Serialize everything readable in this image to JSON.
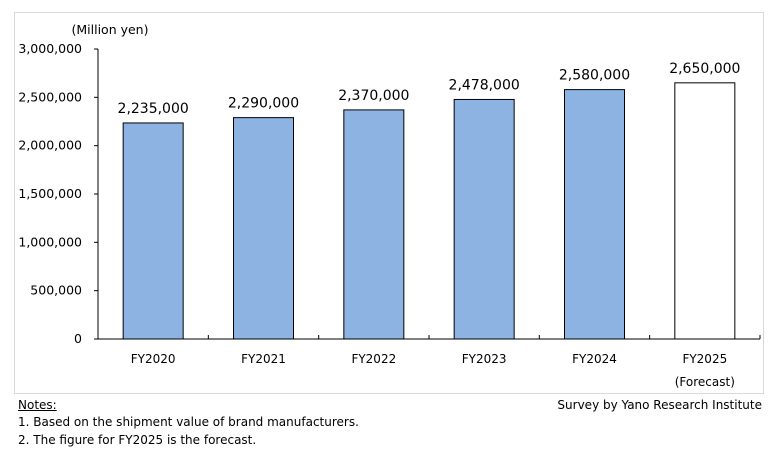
{
  "chart_data": {
    "type": "bar",
    "unit_label": "(Million yen)",
    "categories": [
      "FY2020",
      "FY2021",
      "FY2022",
      "FY2023",
      "FY2024",
      "FY2025"
    ],
    "category_sublabels": [
      "",
      "",
      "",
      "",
      "",
      "(Forecast)"
    ],
    "values": [
      2235000,
      2290000,
      2370000,
      2478000,
      2580000,
      2650000
    ],
    "data_labels": [
      "2,235,000",
      "2,290,000",
      "2,370,000",
      "2,478,000",
      "2,580,000",
      "2,650,000"
    ],
    "forecast": [
      false,
      false,
      false,
      false,
      false,
      true
    ],
    "ylim": [
      0,
      3000000
    ],
    "yticks": [
      0,
      500000,
      1000000,
      1500000,
      2000000,
      2500000,
      3000000
    ],
    "ytick_labels": [
      "0",
      "500,000",
      "1,000,000",
      "1,500,000",
      "2,000,000",
      "2,500,000",
      "3,000,000"
    ],
    "grid": false,
    "colors": {
      "actual": "#8db3e2",
      "forecast": "#ffffff",
      "outline": "#000000"
    }
  },
  "notes": {
    "heading": "Notes:",
    "items": [
      "1. Based on the shipment value of brand manufacturers.",
      "2. The figure for FY2025 is the forecast."
    ],
    "source": "Survey by Yano Research Institute"
  }
}
